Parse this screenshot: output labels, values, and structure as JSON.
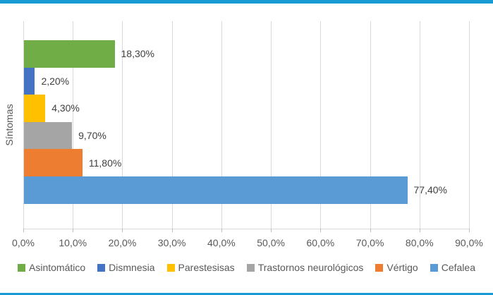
{
  "accent_color": "#189bd5",
  "chart_data": {
    "type": "bar",
    "orientation": "horizontal",
    "title": "",
    "ylabel": "Síntomas",
    "xlabel": "",
    "categories": [
      "Asintomático",
      "Dismnesia",
      "Parestesisas",
      "Trastornos neurológicos",
      "Vértigo",
      "Cefalea"
    ],
    "values": [
      18.3,
      2.2,
      4.3,
      9.7,
      11.8,
      77.4
    ],
    "value_labels": [
      "18,30%",
      "2,20%",
      "4,30%",
      "9,70%",
      "11,80%",
      "77,40%"
    ],
    "bar_colors": [
      "#70ad47",
      "#4472c4",
      "#ffc000",
      "#a5a5a5",
      "#ed7d31",
      "#5b9bd5"
    ],
    "xlim": [
      0,
      90
    ],
    "x_tick_values": [
      0,
      10,
      20,
      30,
      40,
      50,
      60,
      70,
      80,
      90
    ],
    "x_tick_labels": [
      "0,0%",
      "10,0%",
      "20,0%",
      "30,0%",
      "40,0%",
      "50,0%",
      "60,0%",
      "70,0%",
      "80,0%",
      "90,0%"
    ],
    "grid": true,
    "legend_position": "bottom",
    "legend": [
      {
        "label": "Asintomático",
        "color": "#70ad47"
      },
      {
        "label": "Dismnesia",
        "color": "#4472c4"
      },
      {
        "label": "Parestesisas",
        "color": "#ffc000"
      },
      {
        "label": "Trastornos neurológicos",
        "color": "#a5a5a5"
      },
      {
        "label": "Vértigo",
        "color": "#ed7d31"
      },
      {
        "label": "Cefalea",
        "color": "#5b9bd5"
      }
    ]
  }
}
